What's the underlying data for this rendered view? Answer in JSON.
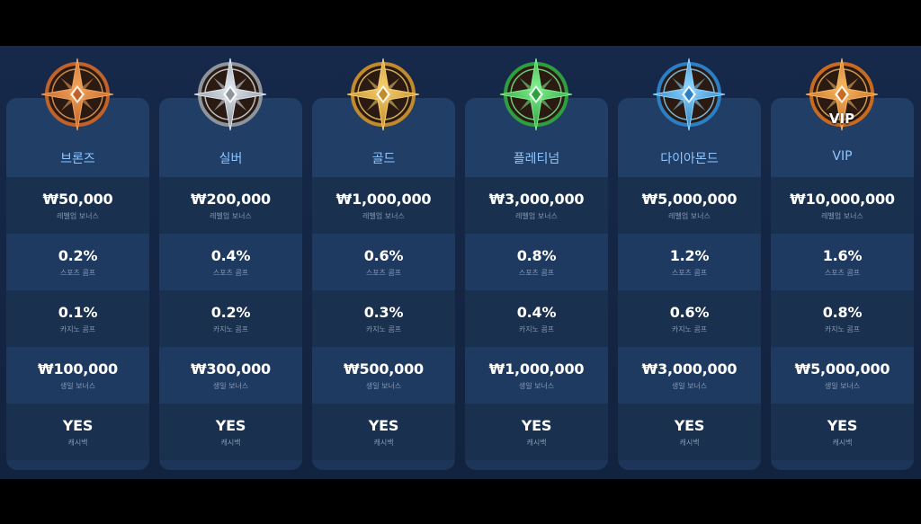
{
  "tiers": [
    {
      "name": "브론즈",
      "emblem": "bronze-compass-emblem",
      "color": "#c0622a",
      "accent": "#f2a35a",
      "rows": [
        {
          "value": "₩50,000",
          "label": "레벨업 보너스"
        },
        {
          "value": "0.2%",
          "label": "스포츠 콤프"
        },
        {
          "value": "0.1%",
          "label": "카지노 콤프"
        },
        {
          "value": "₩100,000",
          "label": "생일 보너스"
        },
        {
          "value": "YES",
          "label": "캐시백"
        }
      ]
    },
    {
      "name": "실버",
      "emblem": "silver-compass-emblem",
      "color": "#8d949c",
      "accent": "#dfe6ee",
      "rows": [
        {
          "value": "₩200,000",
          "label": "레벨업 보너스"
        },
        {
          "value": "0.4%",
          "label": "스포츠 콤프"
        },
        {
          "value": "0.2%",
          "label": "카지노 콤프"
        },
        {
          "value": "₩300,000",
          "label": "생일 보너스"
        },
        {
          "value": "YES",
          "label": "캐시백"
        }
      ]
    },
    {
      "name": "골드",
      "emblem": "gold-compass-emblem",
      "color": "#c18a2c",
      "accent": "#f6cf6e",
      "rows": [
        {
          "value": "₩1,000,000",
          "label": "레벨업 보너스"
        },
        {
          "value": "0.6%",
          "label": "스포츠 콤프"
        },
        {
          "value": "0.3%",
          "label": "카지노 콤프"
        },
        {
          "value": "₩500,000",
          "label": "생일 보너스"
        },
        {
          "value": "YES",
          "label": "캐시백"
        }
      ]
    },
    {
      "name": "플레티넘",
      "emblem": "platinum-compass-emblem",
      "color": "#2e9e3f",
      "accent": "#7ff08e",
      "rows": [
        {
          "value": "₩3,000,000",
          "label": "레벨업 보너스"
        },
        {
          "value": "0.8%",
          "label": "스포츠 콤프"
        },
        {
          "value": "0.4%",
          "label": "카지노 콤프"
        },
        {
          "value": "₩1,000,000",
          "label": "생일 보너스"
        },
        {
          "value": "YES",
          "label": "캐시백"
        }
      ]
    },
    {
      "name": "다이아몬드",
      "emblem": "diamond-compass-emblem",
      "color": "#2b7fc4",
      "accent": "#8fd6ff",
      "rows": [
        {
          "value": "₩5,000,000",
          "label": "레벨업 보너스"
        },
        {
          "value": "1.2%",
          "label": "스포츠 콤프"
        },
        {
          "value": "0.6%",
          "label": "카지노 콤프"
        },
        {
          "value": "₩3,000,000",
          "label": "생일 보너스"
        },
        {
          "value": "YES",
          "label": "캐시백"
        }
      ]
    },
    {
      "name": "VIP",
      "emblem": "vip-compass-emblem",
      "emblem_text": "VIP",
      "color": "#c86a22",
      "accent": "#f5b860",
      "rows": [
        {
          "value": "₩10,000,000",
          "label": "레벨업 보너스"
        },
        {
          "value": "1.6%",
          "label": "스포츠 콤프"
        },
        {
          "value": "0.8%",
          "label": "카지노 콤프"
        },
        {
          "value": "₩5,000,000",
          "label": "생일 보너스"
        },
        {
          "value": "YES",
          "label": "캐시백"
        }
      ]
    }
  ]
}
